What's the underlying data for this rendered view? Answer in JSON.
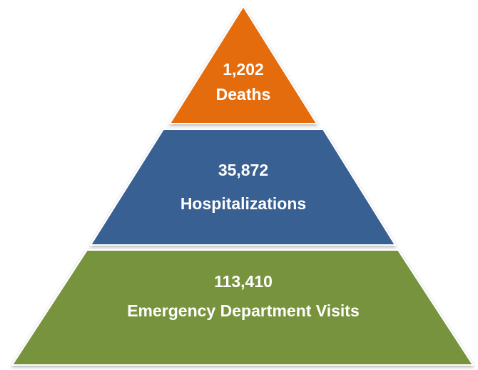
{
  "levels": [
    {
      "value": "1,202",
      "label": "Deaths"
    },
    {
      "value": "35,872",
      "label": "Hospitalizations"
    },
    {
      "value": "113,410",
      "label": "Emergency Department Visits"
    }
  ]
}
